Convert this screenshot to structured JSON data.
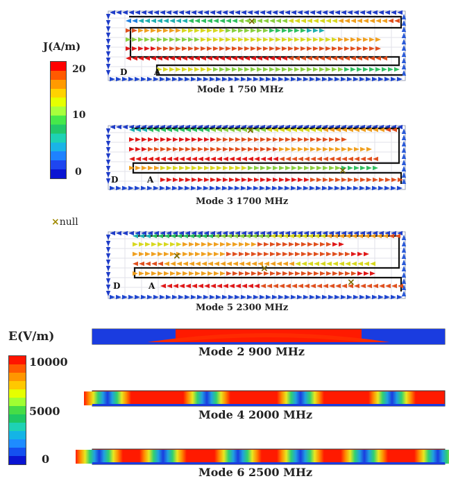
{
  "current_legend": {
    "title": "J(A/m)",
    "ticks": [
      "20",
      "10",
      "0"
    ],
    "colors": [
      "#ff0000",
      "#ff5a00",
      "#ff9a00",
      "#ffd200",
      "#e6ff00",
      "#a8ff3c",
      "#46e84a",
      "#22c86a",
      "#1ed2b4",
      "#1ab4e6",
      "#1e82ff",
      "#1e46f0",
      "#0a14d2"
    ]
  },
  "null_marker": {
    "symbol": "×",
    "label": "null"
  },
  "field_legend": {
    "title": "E(V/m)",
    "ticks": [
      "10000",
      "5000",
      "0"
    ],
    "colors": [
      "#ff1400",
      "#ff5a00",
      "#ff9600",
      "#ffc800",
      "#e6ff00",
      "#a0ff32",
      "#46dc46",
      "#1ec864",
      "#1ed2b4",
      "#14b4e6",
      "#1e8cff",
      "#1450f0",
      "#0a14d2"
    ]
  },
  "current_panels": [
    {
      "caption": "Mode 1  750 MHz",
      "label_d": "D",
      "label_a": "A"
    },
    {
      "caption": "Mode 3  1700 MHz",
      "label_d": "D",
      "label_a": "A"
    },
    {
      "caption": "Mode 5  2300 MHz",
      "label_d": "D",
      "label_a": "A"
    }
  ],
  "field_strips": [
    {
      "caption": "Mode 2    900 MHz"
    },
    {
      "caption": "Mode 4    2000 MHz"
    },
    {
      "caption": "Mode 6    2500 MHz"
    }
  ]
}
